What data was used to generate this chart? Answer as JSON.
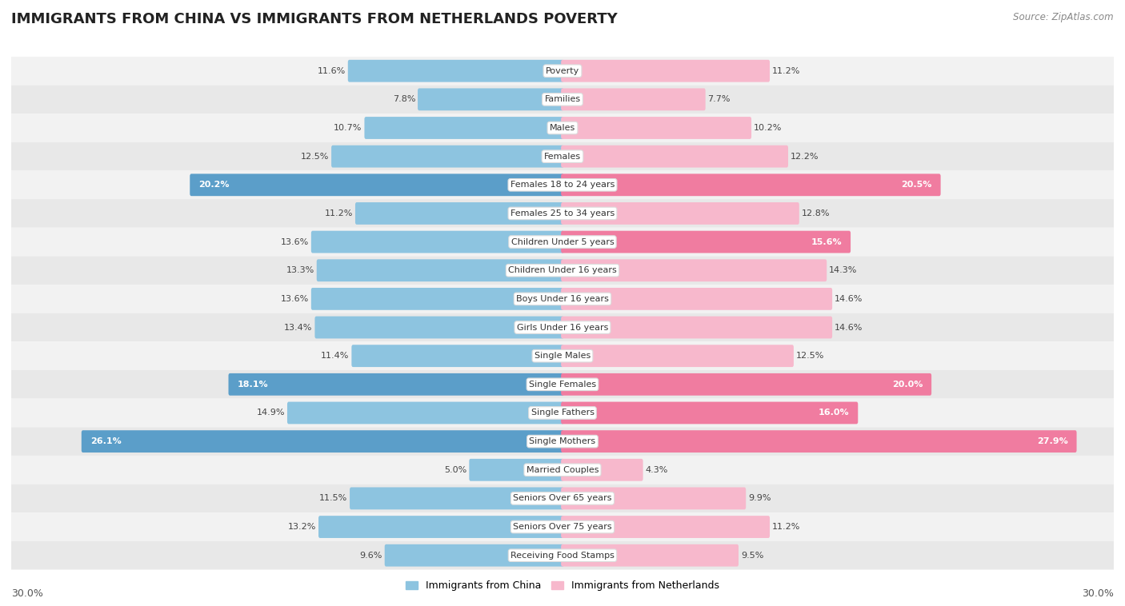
{
  "title": "IMMIGRANTS FROM CHINA VS IMMIGRANTS FROM NETHERLANDS POVERTY",
  "source": "Source: ZipAtlas.com",
  "categories": [
    "Poverty",
    "Families",
    "Males",
    "Females",
    "Females 18 to 24 years",
    "Females 25 to 34 years",
    "Children Under 5 years",
    "Children Under 16 years",
    "Boys Under 16 years",
    "Girls Under 16 years",
    "Single Males",
    "Single Females",
    "Single Fathers",
    "Single Mothers",
    "Married Couples",
    "Seniors Over 65 years",
    "Seniors Over 75 years",
    "Receiving Food Stamps"
  ],
  "china_values": [
    11.6,
    7.8,
    10.7,
    12.5,
    20.2,
    11.2,
    13.6,
    13.3,
    13.6,
    13.4,
    11.4,
    18.1,
    14.9,
    26.1,
    5.0,
    11.5,
    13.2,
    9.6
  ],
  "netherlands_values": [
    11.2,
    7.7,
    10.2,
    12.2,
    20.5,
    12.8,
    15.6,
    14.3,
    14.6,
    14.6,
    12.5,
    20.0,
    16.0,
    27.9,
    4.3,
    9.9,
    11.2,
    9.5
  ],
  "china_color_normal": "#8dc4e0",
  "china_color_highlight": "#5b9ec9",
  "netherlands_color_normal": "#f7b8cc",
  "netherlands_color_highlight": "#f07ca0",
  "highlight_threshold": 15.0,
  "max_value": 30.0,
  "legend_china": "Immigrants from China",
  "legend_netherlands": "Immigrants from Netherlands",
  "row_colors": [
    "#f2f2f2",
    "#e8e8e8"
  ],
  "title_fontsize": 13,
  "source_text": "Source: ZipAtlas.com"
}
